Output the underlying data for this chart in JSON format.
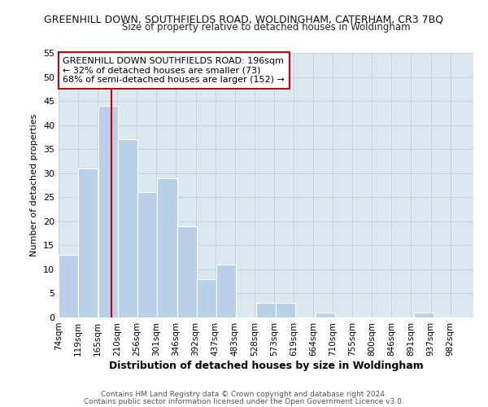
{
  "title_line1": "GREENHILL DOWN, SOUTHFIELDS ROAD, WOLDINGHAM, CATERHAM, CR3 7BQ",
  "title_line2": "Size of property relative to detached houses in Woldingham",
  "xlabel": "Distribution of detached houses by size in Woldingham",
  "ylabel": "Number of detached properties",
  "bar_left_edges": [
    74,
    119,
    165,
    210,
    256,
    301,
    346,
    392,
    437,
    483,
    528,
    573,
    619,
    664,
    710,
    755,
    800,
    846,
    891,
    937
  ],
  "bar_heights": [
    13,
    31,
    44,
    37,
    26,
    29,
    19,
    8,
    11,
    0,
    3,
    3,
    0,
    1,
    0,
    0,
    0,
    0,
    1,
    0
  ],
  "bin_width": 45,
  "bar_color": "#b8d0e8",
  "bar_edge_color": "#ffffff",
  "reference_line_x": 196,
  "reference_line_color": "#cc0000",
  "ylim": [
    0,
    55
  ],
  "yticks": [
    0,
    5,
    10,
    15,
    20,
    25,
    30,
    35,
    40,
    45,
    50,
    55
  ],
  "xtick_labels": [
    "74sqm",
    "119sqm",
    "165sqm",
    "210sqm",
    "256sqm",
    "301sqm",
    "346sqm",
    "392sqm",
    "437sqm",
    "483sqm",
    "528sqm",
    "573sqm",
    "619sqm",
    "664sqm",
    "710sqm",
    "755sqm",
    "800sqm",
    "846sqm",
    "891sqm",
    "937sqm",
    "982sqm"
  ],
  "annotation_text": "GREENHILL DOWN SOUTHFIELDS ROAD: 196sqm\n← 32% of detached houses are smaller (73)\n68% of semi-detached houses are larger (152) →",
  "grid_color": "#c8d4e4",
  "plot_bg_color": "#dce8f0",
  "fig_bg_color": "#ffffff",
  "footer_line1": "Contains HM Land Registry data © Crown copyright and database right 2024.",
  "footer_line2": "Contains public sector information licensed under the Open Government Licence v3.0."
}
